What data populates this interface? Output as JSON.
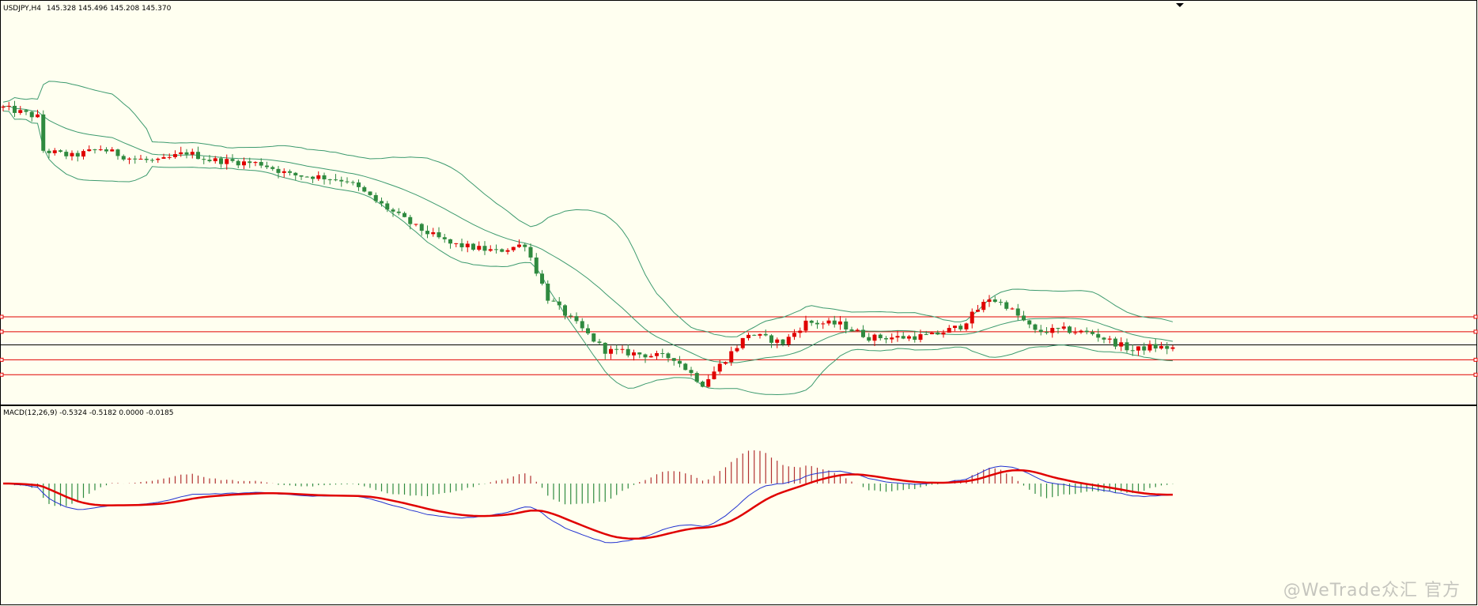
{
  "chart_data": [
    {
      "type": "candlestick",
      "symbol_label": "USDJPY,H4",
      "ohlc_label": "145.328 145.496 145.208 145.370",
      "ylim": [
        139.3,
        149.6
      ],
      "bar_count": 205,
      "colors": {
        "bull": "#e00000",
        "bear": "#2f8a3f",
        "band": "#3c9a6e",
        "level": "#e00000",
        "current": "#000000"
      },
      "guide_points": [
        [
          0,
          147.1
        ],
        [
          6,
          146.85
        ],
        [
          7,
          145.95
        ],
        [
          12,
          145.8
        ],
        [
          17,
          146.0
        ],
        [
          22,
          145.75
        ],
        [
          27,
          145.65
        ],
        [
          32,
          145.9
        ],
        [
          36,
          145.7
        ],
        [
          45,
          145.6
        ],
        [
          50,
          145.3
        ],
        [
          55,
          145.25
        ],
        [
          60,
          145.15
        ],
        [
          65,
          144.6
        ],
        [
          72,
          143.9
        ],
        [
          78,
          143.45
        ],
        [
          86,
          143.25
        ],
        [
          91,
          143.45
        ],
        [
          95,
          142.0
        ],
        [
          105,
          140.6
        ],
        [
          117,
          140.4
        ],
        [
          122,
          139.7
        ],
        [
          130,
          141.05
        ],
        [
          136,
          140.8
        ],
        [
          140,
          141.35
        ],
        [
          146,
          141.3
        ],
        [
          151,
          140.95
        ],
        [
          157,
          140.95
        ],
        [
          162,
          141.0
        ],
        [
          167,
          141.25
        ],
        [
          172,
          142.0
        ],
        [
          175,
          141.8
        ],
        [
          180,
          141.1
        ],
        [
          185,
          141.15
        ],
        [
          190,
          141.05
        ],
        [
          197,
          140.6
        ],
        [
          200,
          140.7
        ],
        [
          205,
          140.65
        ]
      ],
      "horizontal_levels": [
        141.5,
        141.1,
        140.35,
        139.95
      ],
      "current_level": 140.75
    },
    {
      "type": "macd",
      "label": "MACD(12,26,9) -0.5324 -0.5182 0.0000 -0.0185",
      "params": [
        12,
        26,
        9
      ],
      "values": {
        "main": -0.5324,
        "signal": -0.5182,
        "third": 0.0,
        "histogram": -0.0185
      },
      "colors": {
        "hist_pos": "#b03030",
        "hist_neg": "#2f8a3f",
        "main": "#2030d0",
        "signal": "#e00000"
      }
    }
  ],
  "watermark": "@WeTrade众汇 官方"
}
